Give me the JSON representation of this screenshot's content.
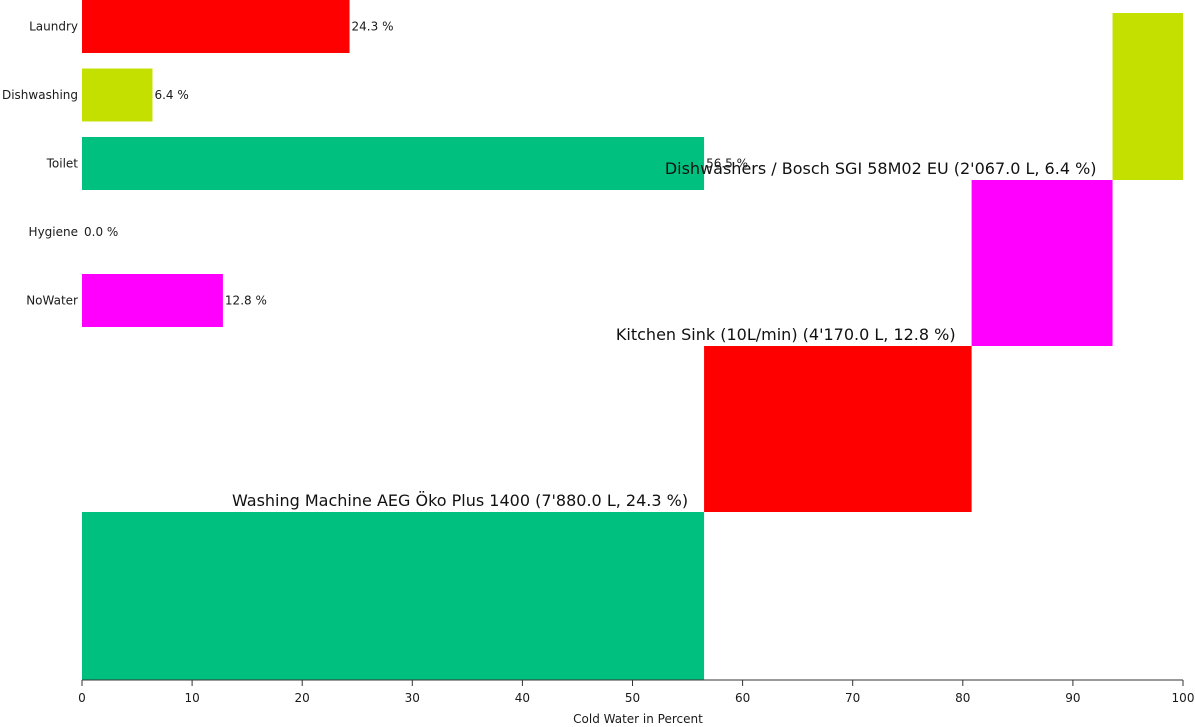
{
  "chart_data": [
    {
      "type": "bar",
      "orientation": "horizontal",
      "categories": [
        "Laundry",
        "Dishwashing",
        "Toilet",
        "Hygiene",
        "NoWater"
      ],
      "values": [
        24.3,
        6.4,
        56.5,
        0.0,
        12.8
      ],
      "value_labels": [
        "24.3 %",
        "6.4 %",
        "56.5 %",
        "0.0 %",
        "12.8 %"
      ],
      "colors": [
        "#ff0000",
        "#c3e000",
        "#00c07f",
        "#cccccc",
        "#ff00ff"
      ],
      "xlim": [
        0,
        100
      ]
    },
    {
      "type": "bar",
      "subtype": "stacked-waterfall",
      "items": [
        {
          "label": "Washing Machine AEG Öko Plus 1400 (7'880.0 L, 24.3 %)",
          "start": 0,
          "end": 56.5,
          "color": "#00c07f"
        },
        {
          "label": "Kitchen Sink (10L/min) (4'170.0 L, 12.8 %)",
          "start": 56.5,
          "end": 80.8,
          "color": "#ff0000"
        },
        {
          "label": "Dishwashers / Bosch SGI 58M02 EU (2'067.0 L, 6.4 %)",
          "start": 80.8,
          "end": 93.6,
          "color": "#ff00ff"
        },
        {
          "label": "",
          "start": 93.6,
          "end": 100,
          "color": "#c3e000"
        }
      ],
      "xlim": [
        0,
        100
      ],
      "xticks": [
        0,
        10,
        20,
        30,
        40,
        50,
        60,
        70,
        80,
        90,
        100
      ],
      "xlabel": "Cold Water in Percent"
    }
  ]
}
